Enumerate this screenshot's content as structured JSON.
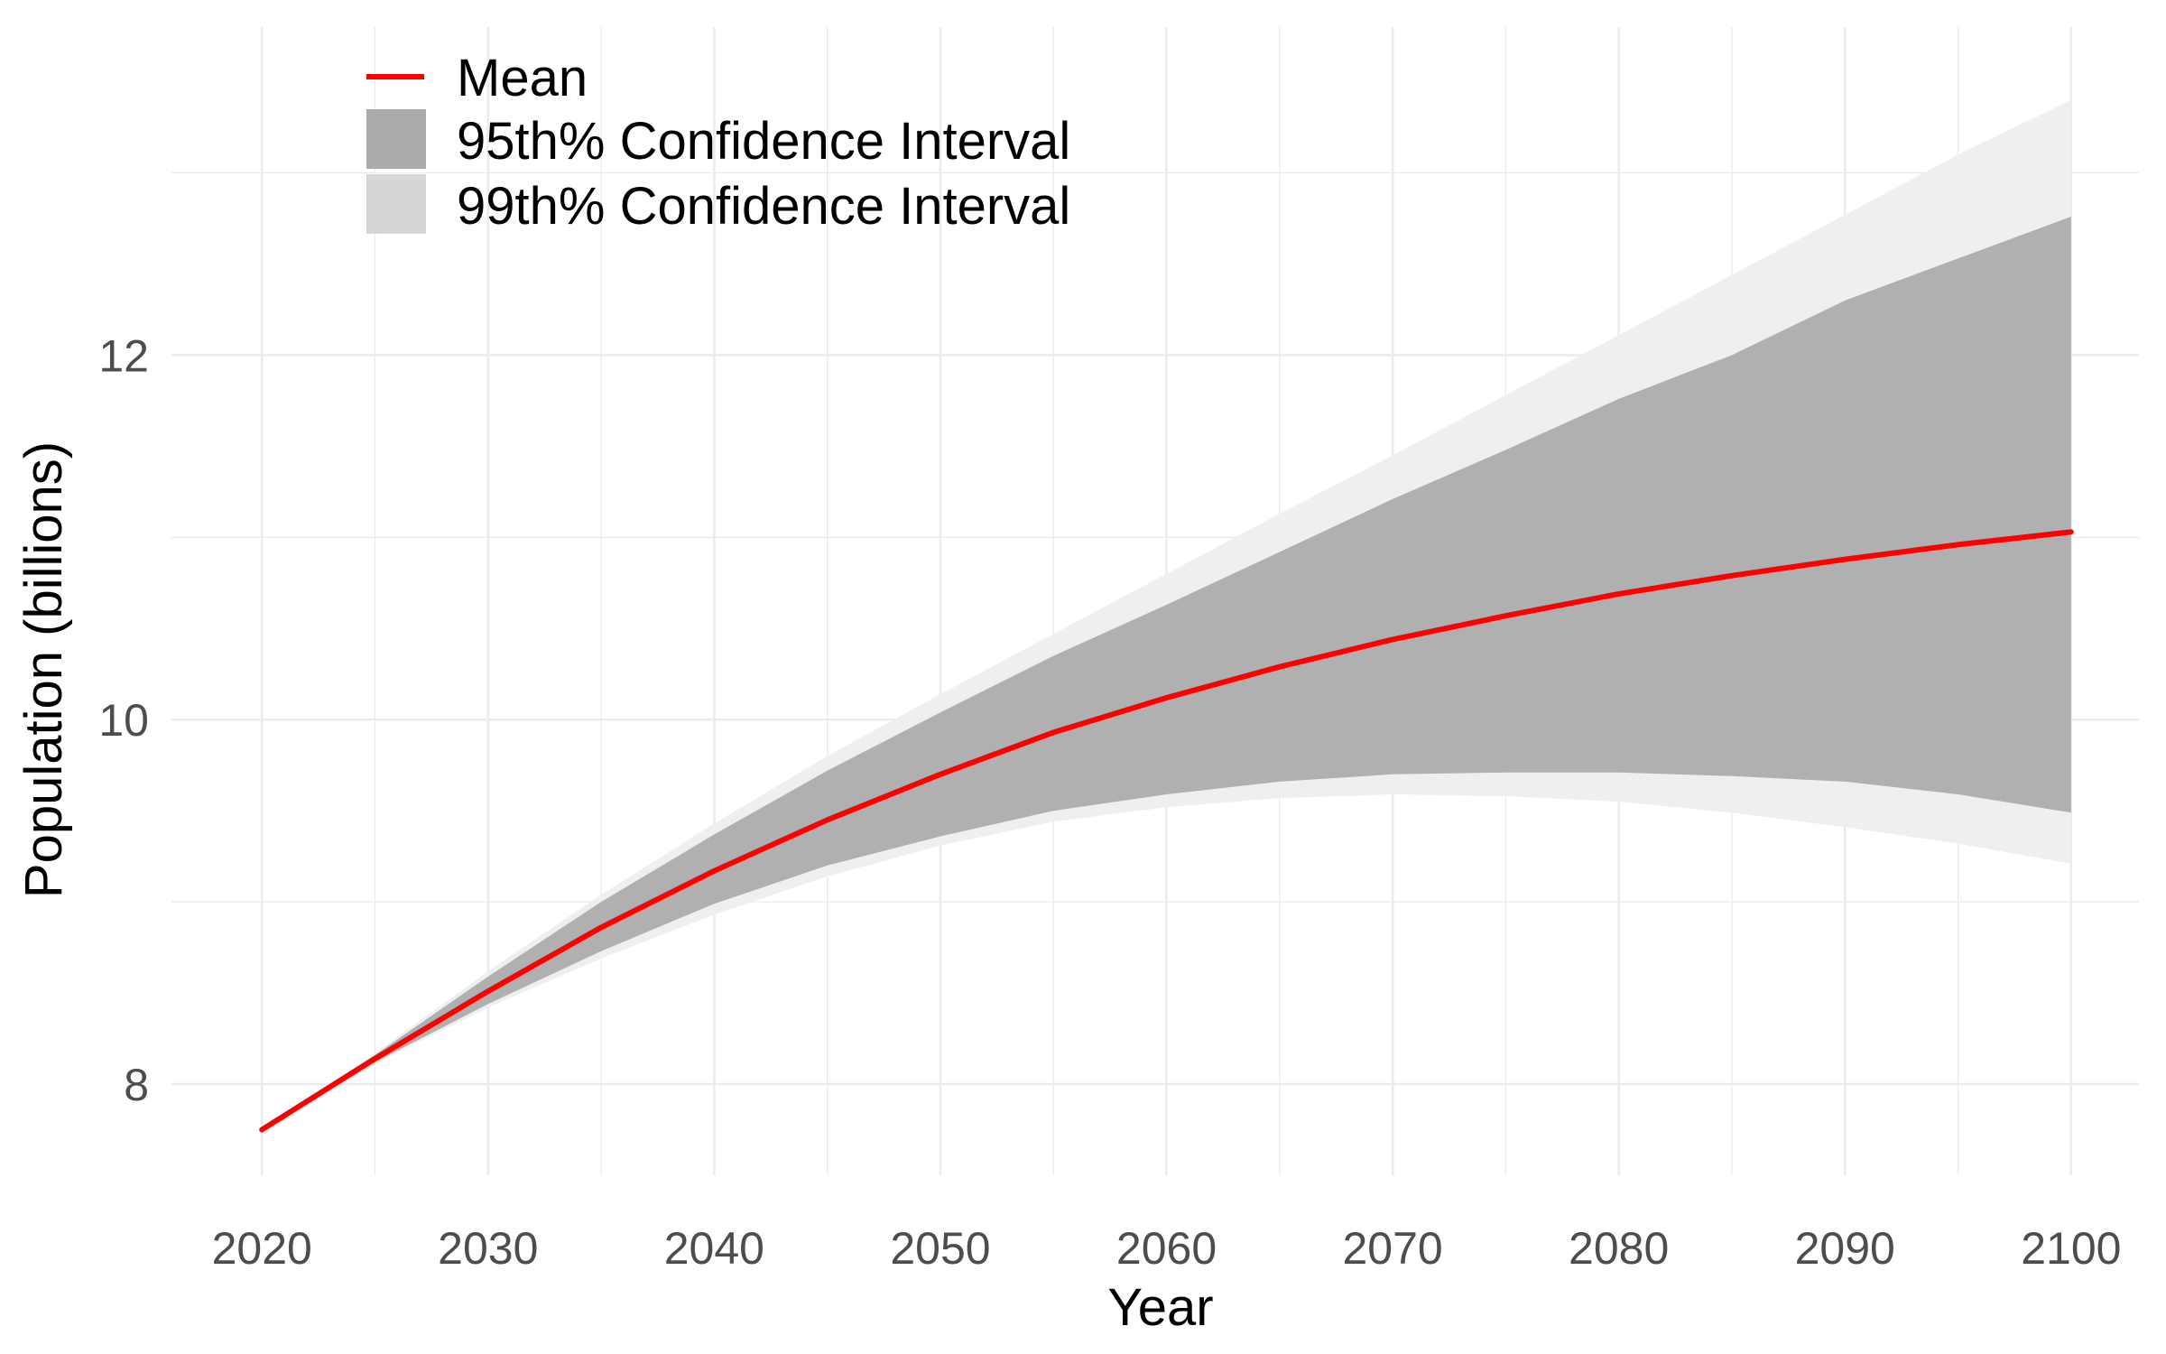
{
  "chart_data": {
    "type": "area",
    "xlabel": "Year",
    "ylabel": "Population (billions)",
    "xlim": [
      2016,
      2103
    ],
    "ylim": [
      7.5,
      13.8
    ],
    "x_ticks": [
      2020,
      2030,
      2040,
      2050,
      2060,
      2070,
      2080,
      2090,
      2100
    ],
    "y_ticks": [
      8,
      10,
      12
    ],
    "grid": true,
    "legend_position": "top-left",
    "legend": {
      "mean_label": "Mean",
      "ci95_label": "95th% Confidence Interval",
      "ci99_label": "99th% Confidence Interval"
    },
    "colors": {
      "mean": "#ff0000",
      "ci95": "#b0b0b0",
      "ci99": "#efefef",
      "ci99_legend": "#d6d6d6",
      "ci95_legend": "#ababab"
    },
    "x": [
      2020,
      2025,
      2030,
      2035,
      2040,
      2045,
      2050,
      2055,
      2060,
      2065,
      2070,
      2075,
      2080,
      2085,
      2090,
      2095,
      2100
    ],
    "series": [
      {
        "name": "Mean",
        "values": [
          7.75,
          8.14,
          8.51,
          8.86,
          9.17,
          9.45,
          9.7,
          9.93,
          10.12,
          10.29,
          10.44,
          10.57,
          10.69,
          10.79,
          10.88,
          10.96,
          11.03
        ]
      },
      {
        "name": "95th% Confidence Interval",
        "lower": [
          7.75,
          8.12,
          8.44,
          8.73,
          8.99,
          9.2,
          9.36,
          9.5,
          9.59,
          9.66,
          9.7,
          9.71,
          9.71,
          9.69,
          9.66,
          9.59,
          9.49
        ],
        "upper": [
          7.75,
          8.16,
          8.59,
          9.0,
          9.37,
          9.72,
          10.04,
          10.35,
          10.63,
          10.92,
          11.21,
          11.48,
          11.76,
          12.0,
          12.3,
          12.53,
          12.76
        ]
      },
      {
        "name": "99th% Confidence Interval",
        "lower": [
          7.75,
          8.11,
          8.42,
          8.69,
          8.93,
          9.14,
          9.31,
          9.44,
          9.52,
          9.57,
          9.59,
          9.58,
          9.55,
          9.49,
          9.41,
          9.32,
          9.21
        ],
        "upper": [
          7.75,
          8.17,
          8.62,
          9.04,
          9.43,
          9.8,
          10.14,
          10.47,
          10.8,
          11.13,
          11.45,
          11.78,
          12.11,
          12.44,
          12.77,
          13.1,
          13.4
        ]
      }
    ]
  }
}
